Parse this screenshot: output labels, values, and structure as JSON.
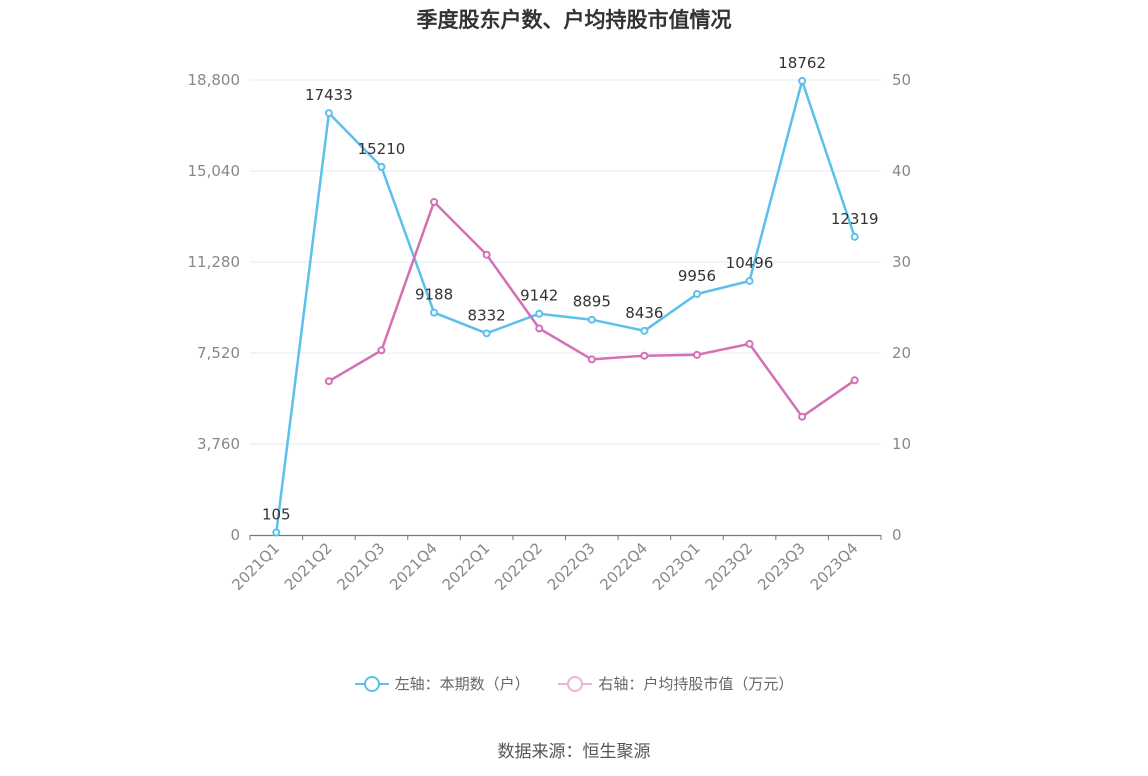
{
  "chart_data": {
    "type": "line",
    "title": "季度股东户数、户均持股市值情况",
    "categories": [
      "2021Q1",
      "2021Q2",
      "2021Q3",
      "2021Q4",
      "2022Q1",
      "2022Q2",
      "2022Q3",
      "2022Q4",
      "2023Q1",
      "2023Q2",
      "2023Q3",
      "2023Q4"
    ],
    "left_axis": {
      "min": 0,
      "max": 18800,
      "ticks": [
        "0",
        "3,760",
        "7,520",
        "11,280",
        "15,040",
        "18,800"
      ],
      "tick_values": [
        0,
        3760,
        7520,
        11280,
        15040,
        18800
      ]
    },
    "right_axis": {
      "min": 0,
      "max": 50,
      "ticks": [
        "0",
        "10",
        "20",
        "30",
        "40",
        "50"
      ],
      "tick_values": [
        0,
        10,
        20,
        30,
        40,
        50
      ]
    },
    "grid": true,
    "legend_position": "bottom",
    "series": [
      {
        "name": "左轴：本期数（户）",
        "axis": "left",
        "color": "#5bc0eb",
        "values": [
          105,
          17433,
          15210,
          9188,
          8332,
          9142,
          8895,
          8436,
          9956,
          10496,
          18762,
          12319
        ],
        "labels": [
          "105",
          "17433",
          "15210",
          "9188",
          "8332",
          "9142",
          "8895",
          "8436",
          "9956",
          "10496",
          "18762",
          "12319"
        ]
      },
      {
        "name": "右轴：户均持股市值（万元）",
        "axis": "right",
        "color": "#d46fb4",
        "values": [
          null,
          16.9,
          20.3,
          36.6,
          30.8,
          22.7,
          19.3,
          19.7,
          19.8,
          21.0,
          13.0,
          17.0
        ]
      }
    ]
  },
  "source": "数据来源：恒生聚源"
}
